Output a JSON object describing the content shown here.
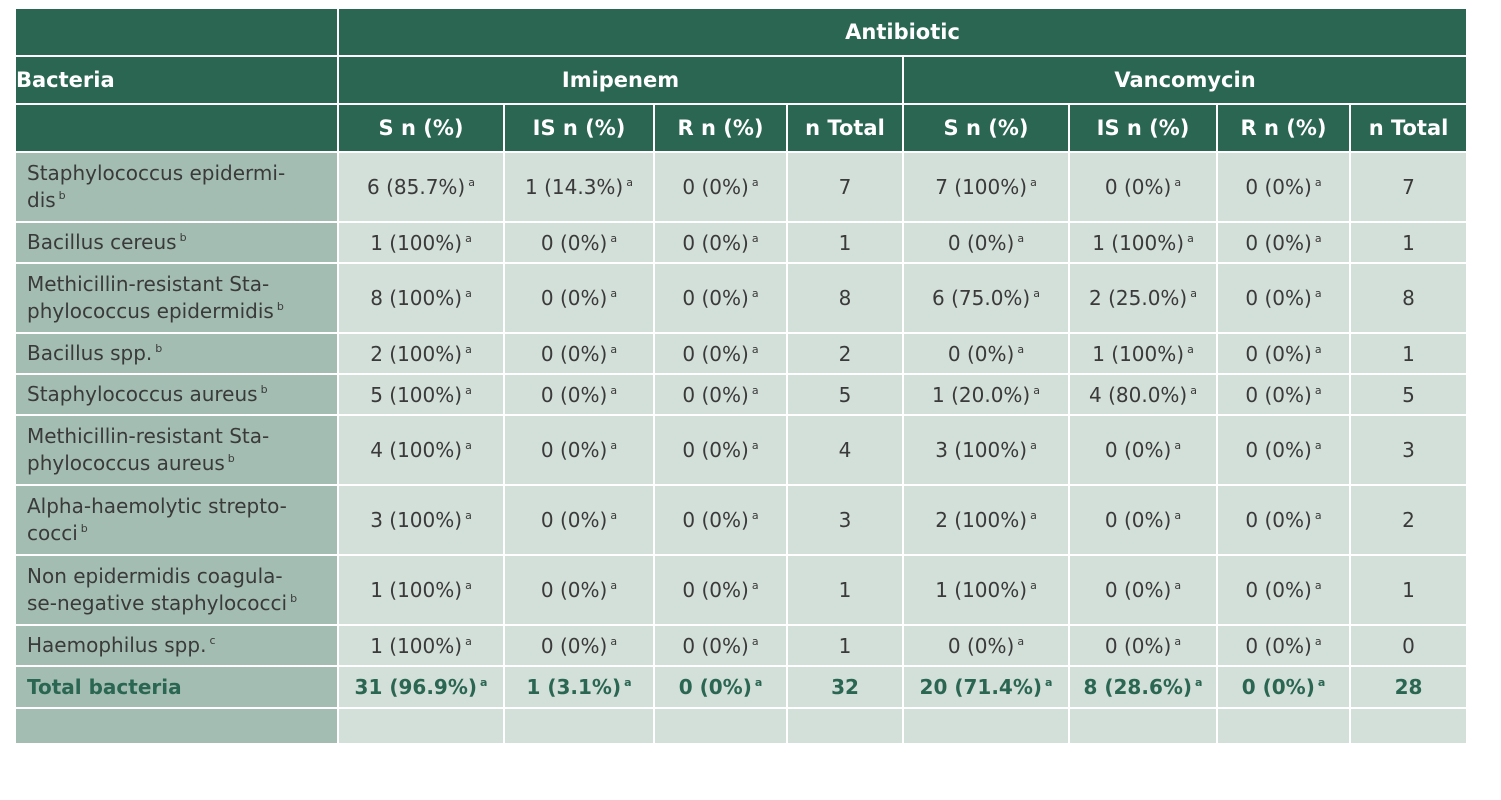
{
  "header": {
    "antibiotic": "Antibiotic",
    "bacteria": "Bacteria",
    "drugs": [
      "Imipenem",
      "Vancomycin"
    ],
    "subcols": [
      "S n (%)",
      "IS n (%)",
      "R n (%)",
      "n Total",
      "S n (%)",
      "IS n (%)",
      "R n (%)",
      "n Total"
    ]
  },
  "rows": [
    {
      "name": "Staphylococcus epidermi-\ndis",
      "sup": "b",
      "tall": true,
      "cells": [
        {
          "v": "6 (85.7%)",
          "s": "a"
        },
        {
          "v": "1 (14.3%)",
          "s": "a"
        },
        {
          "v": "0 (0%)",
          "s": "a"
        },
        {
          "v": "7",
          "s": ""
        },
        {
          "v": "7 (100%)",
          "s": "a"
        },
        {
          "v": "0 (0%)",
          "s": "a"
        },
        {
          "v": "0 (0%)",
          "s": "a"
        },
        {
          "v": "7",
          "s": ""
        }
      ]
    },
    {
      "name": "Bacillus cereus",
      "sup": "b",
      "tall": false,
      "cells": [
        {
          "v": "1 (100%)",
          "s": "a"
        },
        {
          "v": "0 (0%)",
          "s": "a"
        },
        {
          "v": "0 (0%)",
          "s": "a"
        },
        {
          "v": "1",
          "s": ""
        },
        {
          "v": "0 (0%)",
          "s": "a"
        },
        {
          "v": "1 (100%)",
          "s": "a"
        },
        {
          "v": "0 (0%)",
          "s": "a"
        },
        {
          "v": "1",
          "s": ""
        }
      ]
    },
    {
      "name": "Methicillin-resistant Sta-\nphylococcus epidermidis",
      "sup": "b",
      "tall": true,
      "cells": [
        {
          "v": "8 (100%)",
          "s": "a"
        },
        {
          "v": "0 (0%)",
          "s": "a"
        },
        {
          "v": "0 (0%)",
          "s": "a"
        },
        {
          "v": "8",
          "s": ""
        },
        {
          "v": "6 (75.0%)",
          "s": "a"
        },
        {
          "v": "2 (25.0%)",
          "s": "a"
        },
        {
          "v": "0 (0%)",
          "s": "a"
        },
        {
          "v": "8",
          "s": ""
        }
      ]
    },
    {
      "name": "Bacillus spp.",
      "sup": "b",
      "tall": false,
      "cells": [
        {
          "v": "2 (100%)",
          "s": "a"
        },
        {
          "v": "0 (0%)",
          "s": "a"
        },
        {
          "v": "0 (0%)",
          "s": "a"
        },
        {
          "v": "2",
          "s": ""
        },
        {
          "v": "0 (0%)",
          "s": "a"
        },
        {
          "v": "1 (100%)",
          "s": "a"
        },
        {
          "v": "0 (0%)",
          "s": "a"
        },
        {
          "v": "1",
          "s": ""
        }
      ]
    },
    {
      "name": "Staphylococcus aureus",
      "sup": "b",
      "tall": false,
      "cells": [
        {
          "v": "5 (100%)",
          "s": "a"
        },
        {
          "v": "0 (0%)",
          "s": "a"
        },
        {
          "v": "0 (0%)",
          "s": "a"
        },
        {
          "v": "5",
          "s": ""
        },
        {
          "v": "1 (20.0%)",
          "s": "a"
        },
        {
          "v": "4 (80.0%)",
          "s": "a"
        },
        {
          "v": "0 (0%)",
          "s": "a"
        },
        {
          "v": "5",
          "s": ""
        }
      ]
    },
    {
      "name": "Methicillin-resistant Sta-\nphylococcus aureus",
      "sup": "b",
      "tall": true,
      "cells": [
        {
          "v": "4 (100%)",
          "s": "a"
        },
        {
          "v": "0 (0%)",
          "s": "a"
        },
        {
          "v": "0 (0%)",
          "s": "a"
        },
        {
          "v": "4",
          "s": ""
        },
        {
          "v": "3 (100%)",
          "s": "a"
        },
        {
          "v": "0 (0%)",
          "s": "a"
        },
        {
          "v": "0 (0%)",
          "s": "a"
        },
        {
          "v": "3",
          "s": ""
        }
      ]
    },
    {
      "name": "Alpha-haemolytic strepto-\ncocci",
      "sup": "b",
      "tall": true,
      "cells": [
        {
          "v": "3 (100%)",
          "s": "a"
        },
        {
          "v": "0 (0%)",
          "s": "a"
        },
        {
          "v": "0 (0%)",
          "s": "a"
        },
        {
          "v": "3",
          "s": ""
        },
        {
          "v": "2 (100%)",
          "s": "a"
        },
        {
          "v": "0 (0%)",
          "s": "a"
        },
        {
          "v": "0 (0%)",
          "s": "a"
        },
        {
          "v": "2",
          "s": ""
        }
      ]
    },
    {
      "name": "Non epidermidis coagula-\nse-negative staphylococci",
      "sup": "b",
      "tall": true,
      "cells": [
        {
          "v": "1 (100%)",
          "s": "a"
        },
        {
          "v": "0 (0%)",
          "s": "a"
        },
        {
          "v": "0 (0%)",
          "s": "a"
        },
        {
          "v": "1",
          "s": ""
        },
        {
          "v": "1 (100%)",
          "s": "a"
        },
        {
          "v": "0 (0%)",
          "s": "a"
        },
        {
          "v": "0 (0%)",
          "s": "a"
        },
        {
          "v": "1",
          "s": ""
        }
      ]
    },
    {
      "name": "Haemophilus spp.",
      "sup": "c",
      "tall": false,
      "cells": [
        {
          "v": "1 (100%)",
          "s": "a"
        },
        {
          "v": "0 (0%)",
          "s": "a"
        },
        {
          "v": "0 (0%)",
          "s": "a"
        },
        {
          "v": "1",
          "s": ""
        },
        {
          "v": "0 (0%)",
          "s": "a"
        },
        {
          "v": "0 (0%)",
          "s": "a"
        },
        {
          "v": "0 (0%)",
          "s": "a"
        },
        {
          "v": "0",
          "s": ""
        }
      ]
    }
  ],
  "total": {
    "name": "Total bacteria",
    "cells": [
      {
        "v": "31 (96.9%)",
        "s": "a"
      },
      {
        "v": "1 (3.1%)",
        "s": "a"
      },
      {
        "v": "0 (0%)",
        "s": "a"
      },
      {
        "v": "32",
        "s": ""
      },
      {
        "v": "20 (71.4%)",
        "s": "a"
      },
      {
        "v": "8 (28.6%)",
        "s": "a"
      },
      {
        "v": "0 (0%)",
        "s": "a"
      },
      {
        "v": "28",
        "s": ""
      }
    ]
  },
  "colors": {
    "header": "#2a6652",
    "name_cell": "#a3bdb2",
    "body_cell": "#d3dfd9"
  }
}
